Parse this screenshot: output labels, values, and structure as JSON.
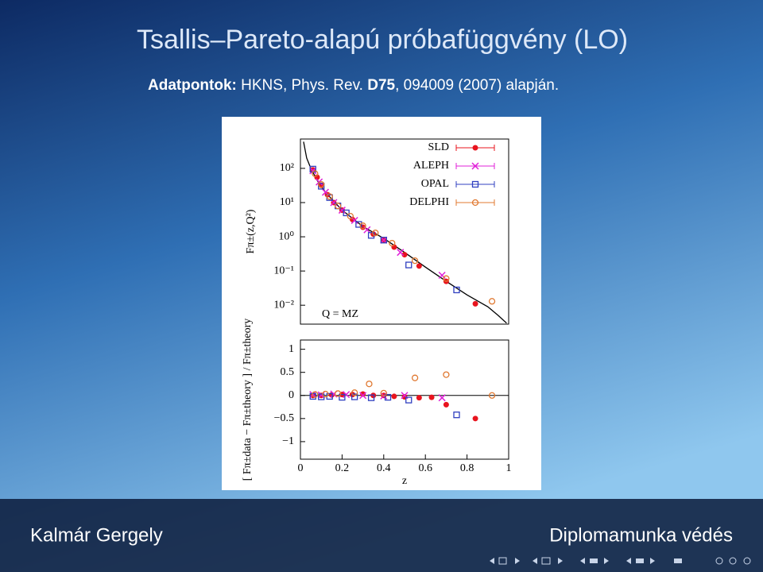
{
  "slide": {
    "title": "Tsallis–Pareto-alapú próbafüggvény (LO)",
    "subtitle": [
      "Adatpontok:",
      "HKNS, Phys. Rev.",
      "D75",
      ", 094009 (2007) alapján."
    ],
    "footer_left": "Kalmár Gergely",
    "footer_right": "Diplomamunka védés"
  },
  "chart_data": [
    {
      "type": "scatter",
      "log_y": true,
      "ylabel": "Fπ±(z,Q²)",
      "annotation": "Q = MZ",
      "xlim": [
        0,
        1
      ],
      "ylim": [
        0.0028,
        720
      ],
      "yticks": [
        {
          "value": 0.01,
          "label": "10⁻²"
        },
        {
          "value": 0.1,
          "label": "10⁻¹"
        },
        {
          "value": 1,
          "label": "10⁰"
        },
        {
          "value": 10,
          "label": "10¹"
        },
        {
          "value": 100,
          "label": "10²"
        }
      ],
      "curve": {
        "color": "#000000",
        "x": [
          0.015,
          0.03,
          0.05,
          0.08,
          0.12,
          0.2,
          0.3,
          0.4,
          0.5,
          0.6,
          0.7,
          0.8,
          0.9,
          0.95,
          0.99
        ],
        "values": [
          600,
          200,
          100,
          45,
          20,
          6,
          2,
          0.9,
          0.35,
          0.13,
          0.05,
          0.02,
          0.009,
          0.005,
          0.003
        ]
      },
      "series": [
        {
          "name": "SLD",
          "color": "#e8141e",
          "marker": "dot",
          "x": [
            0.06,
            0.08,
            0.1,
            0.13,
            0.16,
            0.2,
            0.25,
            0.3,
            0.35,
            0.4,
            0.45,
            0.5,
            0.57,
            0.7,
            0.84
          ],
          "values": [
            90,
            55,
            32,
            17,
            10,
            6,
            3.2,
            1.9,
            1.2,
            0.8,
            0.5,
            0.3,
            0.14,
            0.05,
            0.011
          ]
        },
        {
          "name": "ALEPH",
          "color": "#e020d8",
          "marker": "cross",
          "x": [
            0.06,
            0.09,
            0.12,
            0.16,
            0.2,
            0.26,
            0.32,
            0.4,
            0.48,
            0.68
          ],
          "values": [
            85,
            40,
            20,
            10,
            6,
            3,
            1.6,
            0.8,
            0.35,
            0.075
          ]
        },
        {
          "name": "OPAL",
          "color": "#3040c0",
          "marker": "square",
          "x": [
            0.06,
            0.1,
            0.14,
            0.18,
            0.22,
            0.28,
            0.34,
            0.4,
            0.52,
            0.75
          ],
          "values": [
            95,
            30,
            14,
            8,
            5,
            2.3,
            1.1,
            0.8,
            0.15,
            0.028
          ]
        },
        {
          "name": "DELPHI",
          "color": "#e07830",
          "marker": "circle",
          "x": [
            0.07,
            0.1,
            0.14,
            0.18,
            0.24,
            0.3,
            0.36,
            0.44,
            0.55,
            0.7,
            0.92
          ],
          "values": [
            70,
            34,
            15,
            8,
            4,
            2.1,
            1.3,
            0.65,
            0.2,
            0.06,
            0.013
          ]
        }
      ]
    },
    {
      "type": "scatter",
      "log_y": false,
      "xlabel": "z",
      "ylabel": "[ Fπ±data − Fπ±theory ] / Fπ±theory",
      "xlim": [
        0,
        1
      ],
      "ylim": [
        -1.38,
        1.2
      ],
      "xticks": [
        0,
        0.2,
        0.4,
        0.6,
        0.8,
        1
      ],
      "yticks": [
        {
          "value": -1,
          "label": "−1"
        },
        {
          "value": -0.5,
          "label": "−0.5"
        },
        0,
        0.5,
        1
      ],
      "series": [
        {
          "color": "#e8141e",
          "marker": "dot",
          "x": [
            0.06,
            0.1,
            0.15,
            0.2,
            0.25,
            0.3,
            0.35,
            0.4,
            0.45,
            0.5,
            0.57,
            0.63,
            0.7,
            0.84
          ],
          "values": [
            0.0,
            0.0,
            0.01,
            0.02,
            0.02,
            0.03,
            0.0,
            0.0,
            -0.02,
            -0.03,
            -0.05,
            -0.04,
            -0.2,
            -0.5
          ]
        },
        {
          "color": "#e020d8",
          "marker": "cross",
          "x": [
            0.06,
            0.1,
            0.16,
            0.22,
            0.3,
            0.4,
            0.5,
            0.68
          ],
          "values": [
            0.02,
            0.01,
            0.03,
            0.02,
            0.0,
            -0.01,
            0.0,
            -0.05
          ]
        },
        {
          "color": "#3040c0",
          "marker": "square",
          "x": [
            0.06,
            0.1,
            0.14,
            0.2,
            0.26,
            0.34,
            0.42,
            0.52,
            0.75
          ],
          "values": [
            -0.02,
            -0.03,
            -0.02,
            -0.04,
            -0.03,
            -0.05,
            -0.04,
            -0.1,
            -0.42
          ]
        },
        {
          "color": "#e07830",
          "marker": "circle",
          "x": [
            0.07,
            0.12,
            0.18,
            0.26,
            0.33,
            0.4,
            0.55,
            0.7,
            0.92
          ],
          "values": [
            0.02,
            0.03,
            0.04,
            0.06,
            0.25,
            0.05,
            0.38,
            0.45,
            0.0
          ]
        }
      ]
    }
  ]
}
